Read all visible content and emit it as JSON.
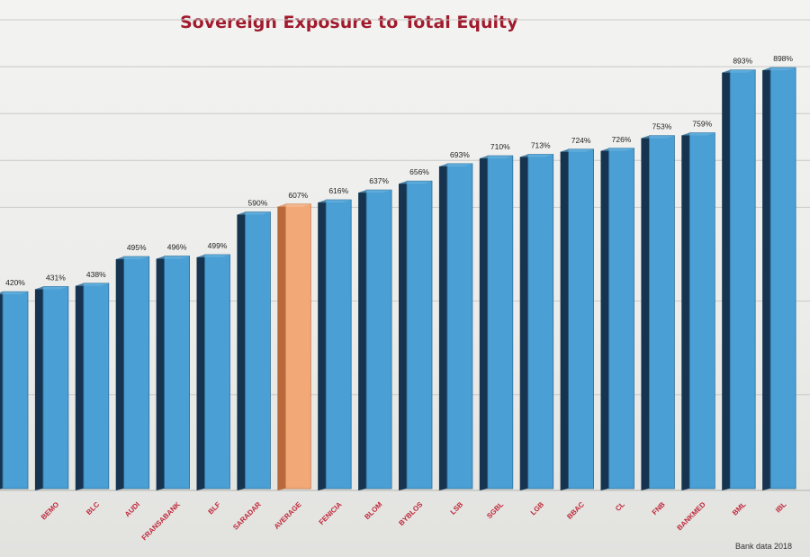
{
  "chart_data": {
    "type": "bar",
    "title": "Sovereign Exposure to Total Equity",
    "note": "Bank data 2018",
    "categories": [
      "",
      "BEMO",
      "BLC",
      "AUDI",
      "FRANSABANK",
      "BLF",
      "SARADAR",
      "AVERAGE",
      "FENICIA",
      "BLOM",
      "BYBLOS",
      "LSB",
      "SGBL",
      "LGB",
      "BBAC",
      "CL",
      "FNB",
      "BANKMED",
      "BML",
      "IBL"
    ],
    "values": [
      420,
      431,
      438,
      495,
      496,
      499,
      590,
      607,
      616,
      637,
      656,
      693,
      710,
      713,
      724,
      726,
      753,
      759,
      893,
      898
    ],
    "data_labels": [
      "420%",
      "431%",
      "438%",
      "495%",
      "496%",
      "499%",
      "590%",
      "607%",
      "616%",
      "637%",
      "656%",
      "693%",
      "710%",
      "713%",
      "724%",
      "726%",
      "753%",
      "759%",
      "893%",
      "898%"
    ],
    "ylim": [
      0,
      1000
    ],
    "grid": true,
    "colors": {
      "bar_front": "#4a9fd4",
      "bar_side": "#16344f",
      "highlight_front": "#f2a877",
      "highlight_side": "#b8683a",
      "title": "#a01a2c",
      "category_label": "#c0283a"
    },
    "highlight_category": "AVERAGE"
  }
}
